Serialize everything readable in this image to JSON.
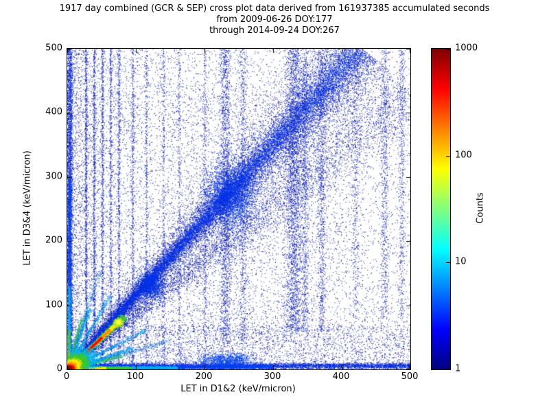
{
  "figure": {
    "background": "#ffffff",
    "frame_color": "#000000"
  },
  "chart_data": {
    "type": "heatmap",
    "subtype": "2d-histogram cross plot, log-count color scale, jet colormap",
    "title_lines": [
      "1917 day combined (GCR & SEP) cross plot data derived from 161937385 accumulated seconds",
      "from 2009-06-26 DOY:177",
      "through 2014-09-24 DOY:267"
    ],
    "xlabel": "LET in D1&2 (keV/micron)",
    "ylabel": "LET in D3&4 (keV/micron)",
    "xlim": [
      0,
      500
    ],
    "ylim": [
      0,
      500
    ],
    "xticks": [
      0,
      100,
      200,
      300,
      400,
      500
    ],
    "yticks": [
      0,
      100,
      200,
      300,
      400,
      500
    ],
    "grid": false,
    "colormap": "jet",
    "colorbar": {
      "label": "Counts",
      "scale": "log",
      "min": 1,
      "max": 1000,
      "ticks": [
        1,
        10,
        100,
        1000
      ],
      "gradient": [
        {
          "color": "#00007f",
          "pos": 0
        },
        {
          "color": "#0000ff",
          "pos": 12.5
        },
        {
          "color": "#00ffff",
          "pos": 37.5
        },
        {
          "color": "#ffff00",
          "pos": 62.5
        },
        {
          "color": "#ff0000",
          "pos": 87.5
        },
        {
          "color": "#7f0000",
          "pos": 100
        }
      ]
    },
    "features": [
      {
        "kind": "uniform",
        "x0": 0,
        "x1": 500,
        "y0": 0,
        "y1": 500,
        "n": 3200,
        "color": "#000d8f"
      },
      {
        "kind": "uniform",
        "x0": 0,
        "x1": 500,
        "y0": 0,
        "y1": 500,
        "n": 9000,
        "powx": 2.2,
        "color": "#0011a5"
      },
      {
        "kind": "uniform",
        "x0": 0,
        "x1": 500,
        "y0": 0,
        "y1": 70,
        "n": 2600,
        "color": "#0011a5"
      },
      {
        "kind": "uniform",
        "x0": 150,
        "x1": 430,
        "y0": 60,
        "y1": 430,
        "n": 1600,
        "color": "#000d8f"
      },
      {
        "kind": "vband",
        "x": 27,
        "sigma": 1.6,
        "y0": 0,
        "y1": 500,
        "n": 900,
        "color": "#0019c4"
      },
      {
        "kind": "vband",
        "x": 39,
        "sigma": 1.6,
        "y0": 0,
        "y1": 500,
        "n": 780,
        "color": "#0019c4"
      },
      {
        "kind": "vband",
        "x": 51,
        "sigma": 1.6,
        "y0": 0,
        "y1": 500,
        "n": 720,
        "color": "#0019c4"
      },
      {
        "kind": "vband",
        "x": 63,
        "sigma": 1.6,
        "y0": 0,
        "y1": 500,
        "n": 660,
        "color": "#0019c4"
      },
      {
        "kind": "vband",
        "x": 75,
        "sigma": 1.7,
        "y0": 0,
        "y1": 500,
        "n": 620,
        "color": "#0019c4"
      },
      {
        "kind": "vband",
        "x": 95,
        "sigma": 1.8,
        "y0": 0,
        "y1": 500,
        "n": 520,
        "color": "#0019c4"
      },
      {
        "kind": "vband",
        "x": 115,
        "sigma": 1.8,
        "y0": 0,
        "y1": 500,
        "n": 430,
        "color": "#0019c4"
      },
      {
        "kind": "vband",
        "x": 140,
        "sigma": 2,
        "y0": 0,
        "y1": 500,
        "n": 360,
        "color": "#0019c4"
      },
      {
        "kind": "vband",
        "x": 163,
        "sigma": 2,
        "y0": 0,
        "y1": 500,
        "n": 310,
        "color": "#0019c4"
      },
      {
        "kind": "vband",
        "x": 200,
        "sigma": 2.5,
        "y0": 0,
        "y1": 500,
        "n": 380,
        "color": "#0019c4"
      },
      {
        "kind": "vband",
        "x": 230,
        "sigma": 7,
        "y0": 40,
        "y1": 500,
        "n": 1500,
        "color": "#0016b8"
      },
      {
        "kind": "vband",
        "x": 256,
        "sigma": 5,
        "y0": 40,
        "y1": 500,
        "n": 700,
        "color": "#0016b8"
      },
      {
        "kind": "vband",
        "x": 330,
        "sigma": 11,
        "y0": 60,
        "y1": 500,
        "n": 2400,
        "color": "#0016b8"
      },
      {
        "kind": "vband",
        "x": 346,
        "sigma": 4,
        "y0": 60,
        "y1": 500,
        "n": 700,
        "color": "#0019c4"
      },
      {
        "kind": "vband",
        "x": 370,
        "sigma": 5,
        "y0": 60,
        "y1": 500,
        "n": 800,
        "color": "#0016b8"
      },
      {
        "kind": "vband",
        "x": 420,
        "sigma": 4,
        "y0": 80,
        "y1": 500,
        "n": 330,
        "color": "#0016b8"
      },
      {
        "kind": "vband",
        "x": 462,
        "sigma": 5,
        "y0": 80,
        "y1": 500,
        "n": 650,
        "color": "#0016b8"
      },
      {
        "kind": "vband",
        "x": 487,
        "sigma": 4,
        "y0": 80,
        "y1": 500,
        "n": 480,
        "color": "#0016b8"
      },
      {
        "kind": "ray",
        "x0": 0,
        "y0": 0,
        "x1": 500,
        "y1": 430,
        "s0": 3,
        "s1": 42,
        "n": 4200,
        "color": "#0013b0",
        "pow": 1
      },
      {
        "kind": "ray",
        "x0": 0,
        "y0": 0,
        "x1": 430,
        "y1": 500,
        "s0": 4,
        "s1": 60,
        "n": 9000,
        "color": "#0013b0",
        "pow": 0.95
      },
      {
        "kind": "ray",
        "x0": 0,
        "y0": 0,
        "x1": 430,
        "y1": 500,
        "s0": 2.5,
        "s1": 30,
        "n": 9000,
        "color": "#001ed2",
        "pow": 1
      },
      {
        "kind": "ray",
        "x0": 0,
        "y0": 0,
        "x1": 425,
        "y1": 500,
        "s0": 1.5,
        "s1": 15,
        "n": 6000,
        "color": "#0032e8",
        "pow": 1.05
      },
      {
        "kind": "blob",
        "x": 238,
        "y": 272,
        "sx": 30,
        "sy": 42,
        "n": 3200,
        "color": "#0032e8"
      },
      {
        "kind": "blob",
        "x": 122,
        "y": 132,
        "sx": 15,
        "sy": 17,
        "n": 1300,
        "color": "#0032e8"
      },
      {
        "kind": "hband",
        "y": 6,
        "sigma": 4,
        "x0": 0,
        "x1": 500,
        "n": 5200,
        "color": "#0026da"
      },
      {
        "kind": "hband",
        "y": 4,
        "sigma": 2.6,
        "x0": 0,
        "x1": 300,
        "n": 3000,
        "color": "#0041f2"
      },
      {
        "kind": "blob",
        "x": 232,
        "y": 14,
        "sx": 34,
        "sy": 10,
        "n": 1200,
        "color": "#0041f2"
      },
      {
        "kind": "hband",
        "y": 3,
        "sigma": 2,
        "x0": 0,
        "x1": 160,
        "n": 2200,
        "color": "#00b2ee"
      },
      {
        "kind": "hband",
        "y": 2.5,
        "sigma": 1.6,
        "x0": 0,
        "x1": 92,
        "n": 1500,
        "color": "#3ecb33"
      },
      {
        "kind": "hband",
        "y": 2.2,
        "sigma": 1.3,
        "x0": 0,
        "x1": 56,
        "n": 1200,
        "color": "#ffe900"
      },
      {
        "kind": "hband",
        "y": 2,
        "sigma": 1,
        "x0": 0,
        "x1": 30,
        "n": 900,
        "color": "#ff9100"
      },
      {
        "kind": "vband",
        "x": 4,
        "sigma": 3,
        "y0": 0,
        "y1": 500,
        "n": 2600,
        "color": "#0026da"
      },
      {
        "kind": "vband",
        "x": 3,
        "sigma": 2.2,
        "y0": 0,
        "y1": 300,
        "n": 1500,
        "color": "#0041f2"
      },
      {
        "kind": "vband",
        "x": 2.6,
        "sigma": 1.7,
        "y0": 0,
        "y1": 130,
        "n": 900,
        "color": "#00b2ee"
      },
      {
        "kind": "vband",
        "x": 2.2,
        "sigma": 1.3,
        "y0": 0,
        "y1": 62,
        "n": 600,
        "color": "#3ecb33"
      },
      {
        "kind": "vband",
        "x": 2,
        "sigma": 1,
        "y0": 0,
        "y1": 30,
        "n": 420,
        "color": "#ffaa00"
      },
      {
        "kind": "ray",
        "x0": 0,
        "y0": 0,
        "x1": 95,
        "y1": 33,
        "s0": 1,
        "s1": 3,
        "n": 700,
        "color": "#00aaee",
        "pow": 1.4
      },
      {
        "kind": "ray",
        "x0": 0,
        "y0": 0,
        "x1": 33,
        "y1": 95,
        "s0": 1,
        "s1": 3,
        "n": 700,
        "color": "#00aaee",
        "pow": 1.4
      },
      {
        "kind": "ray",
        "x0": 0,
        "y0": 0,
        "x1": 115,
        "y1": 62,
        "s0": 1,
        "s1": 3.5,
        "n": 620,
        "color": "#0090e8",
        "pow": 1.4
      },
      {
        "kind": "ray",
        "x0": 0,
        "y0": 0,
        "x1": 62,
        "y1": 115,
        "s0": 1,
        "s1": 3.5,
        "n": 620,
        "color": "#0090e8",
        "pow": 1.4
      },
      {
        "kind": "ray",
        "x0": 0,
        "y0": 0,
        "x1": 150,
        "y1": 46,
        "s0": 1,
        "s1": 4,
        "n": 430,
        "color": "#0070dd",
        "pow": 1.5
      },
      {
        "kind": "ray",
        "x0": 0,
        "y0": 0,
        "x1": 46,
        "y1": 150,
        "s0": 1,
        "s1": 4,
        "n": 430,
        "color": "#0070dd",
        "pow": 1.5
      },
      {
        "kind": "ray",
        "x0": 0,
        "y0": 0,
        "x1": 80,
        "y1": 21,
        "s0": 0.8,
        "s1": 2.4,
        "n": 460,
        "color": "#2fbb66",
        "pow": 1.3
      },
      {
        "kind": "ray",
        "x0": 0,
        "y0": 0,
        "x1": 21,
        "y1": 80,
        "s0": 0.8,
        "s1": 2.4,
        "n": 460,
        "color": "#2fbb66",
        "pow": 1.3
      },
      {
        "kind": "ray",
        "x0": 0,
        "y0": 0,
        "x1": 83,
        "y1": 83,
        "s0": 2,
        "s1": 5,
        "n": 2300,
        "color": "#33cc33",
        "pow": 1
      },
      {
        "kind": "ray",
        "x0": 0,
        "y0": 0,
        "x1": 78,
        "y1": 78,
        "s0": 1.2,
        "s1": 2.6,
        "n": 2300,
        "color": "#ffe900",
        "pow": 1.05
      },
      {
        "kind": "ray",
        "x0": 0,
        "y0": 0,
        "x1": 62,
        "y1": 62,
        "s0": 1,
        "s1": 1.8,
        "n": 1800,
        "color": "#ff9100",
        "pow": 1
      },
      {
        "kind": "ray",
        "x0": 0,
        "y0": 0,
        "x1": 50,
        "y1": 50,
        "s0": 0.8,
        "s1": 1.4,
        "n": 1800,
        "color": "#ee1600",
        "pow": 1
      },
      {
        "kind": "blob",
        "x": 74,
        "y": 74,
        "sx": 5,
        "sy": 5,
        "n": 750,
        "color": "#a8e622"
      },
      {
        "kind": "blob",
        "x": 74,
        "y": 74,
        "sx": 2.6,
        "sy": 2.6,
        "n": 280,
        "color": "#ffff33"
      },
      {
        "kind": "blob",
        "x": 20,
        "y": 16,
        "sx": 20,
        "sy": 16,
        "n": 2600,
        "color": "#00b4ee"
      },
      {
        "kind": "blob",
        "x": 13,
        "y": 11,
        "sx": 13,
        "sy": 11,
        "n": 2400,
        "color": "#40cb22"
      },
      {
        "kind": "blob",
        "x": 8,
        "y": 7,
        "sx": 8,
        "sy": 7,
        "n": 2200,
        "color": "#ffe900"
      },
      {
        "kind": "blob",
        "x": 5,
        "y": 4.5,
        "sx": 5,
        "sy": 4.5,
        "n": 1800,
        "color": "#ff8c00"
      },
      {
        "kind": "blob",
        "x": 3.5,
        "y": 3,
        "sx": 3.5,
        "sy": 3,
        "n": 1500,
        "color": "#ee1600",
        "size": 2
      },
      {
        "kind": "blob",
        "x": 2,
        "y": 2,
        "sx": 2.2,
        "sy": 2,
        "n": 1000,
        "color": "#8f0000",
        "size": 2
      }
    ]
  }
}
